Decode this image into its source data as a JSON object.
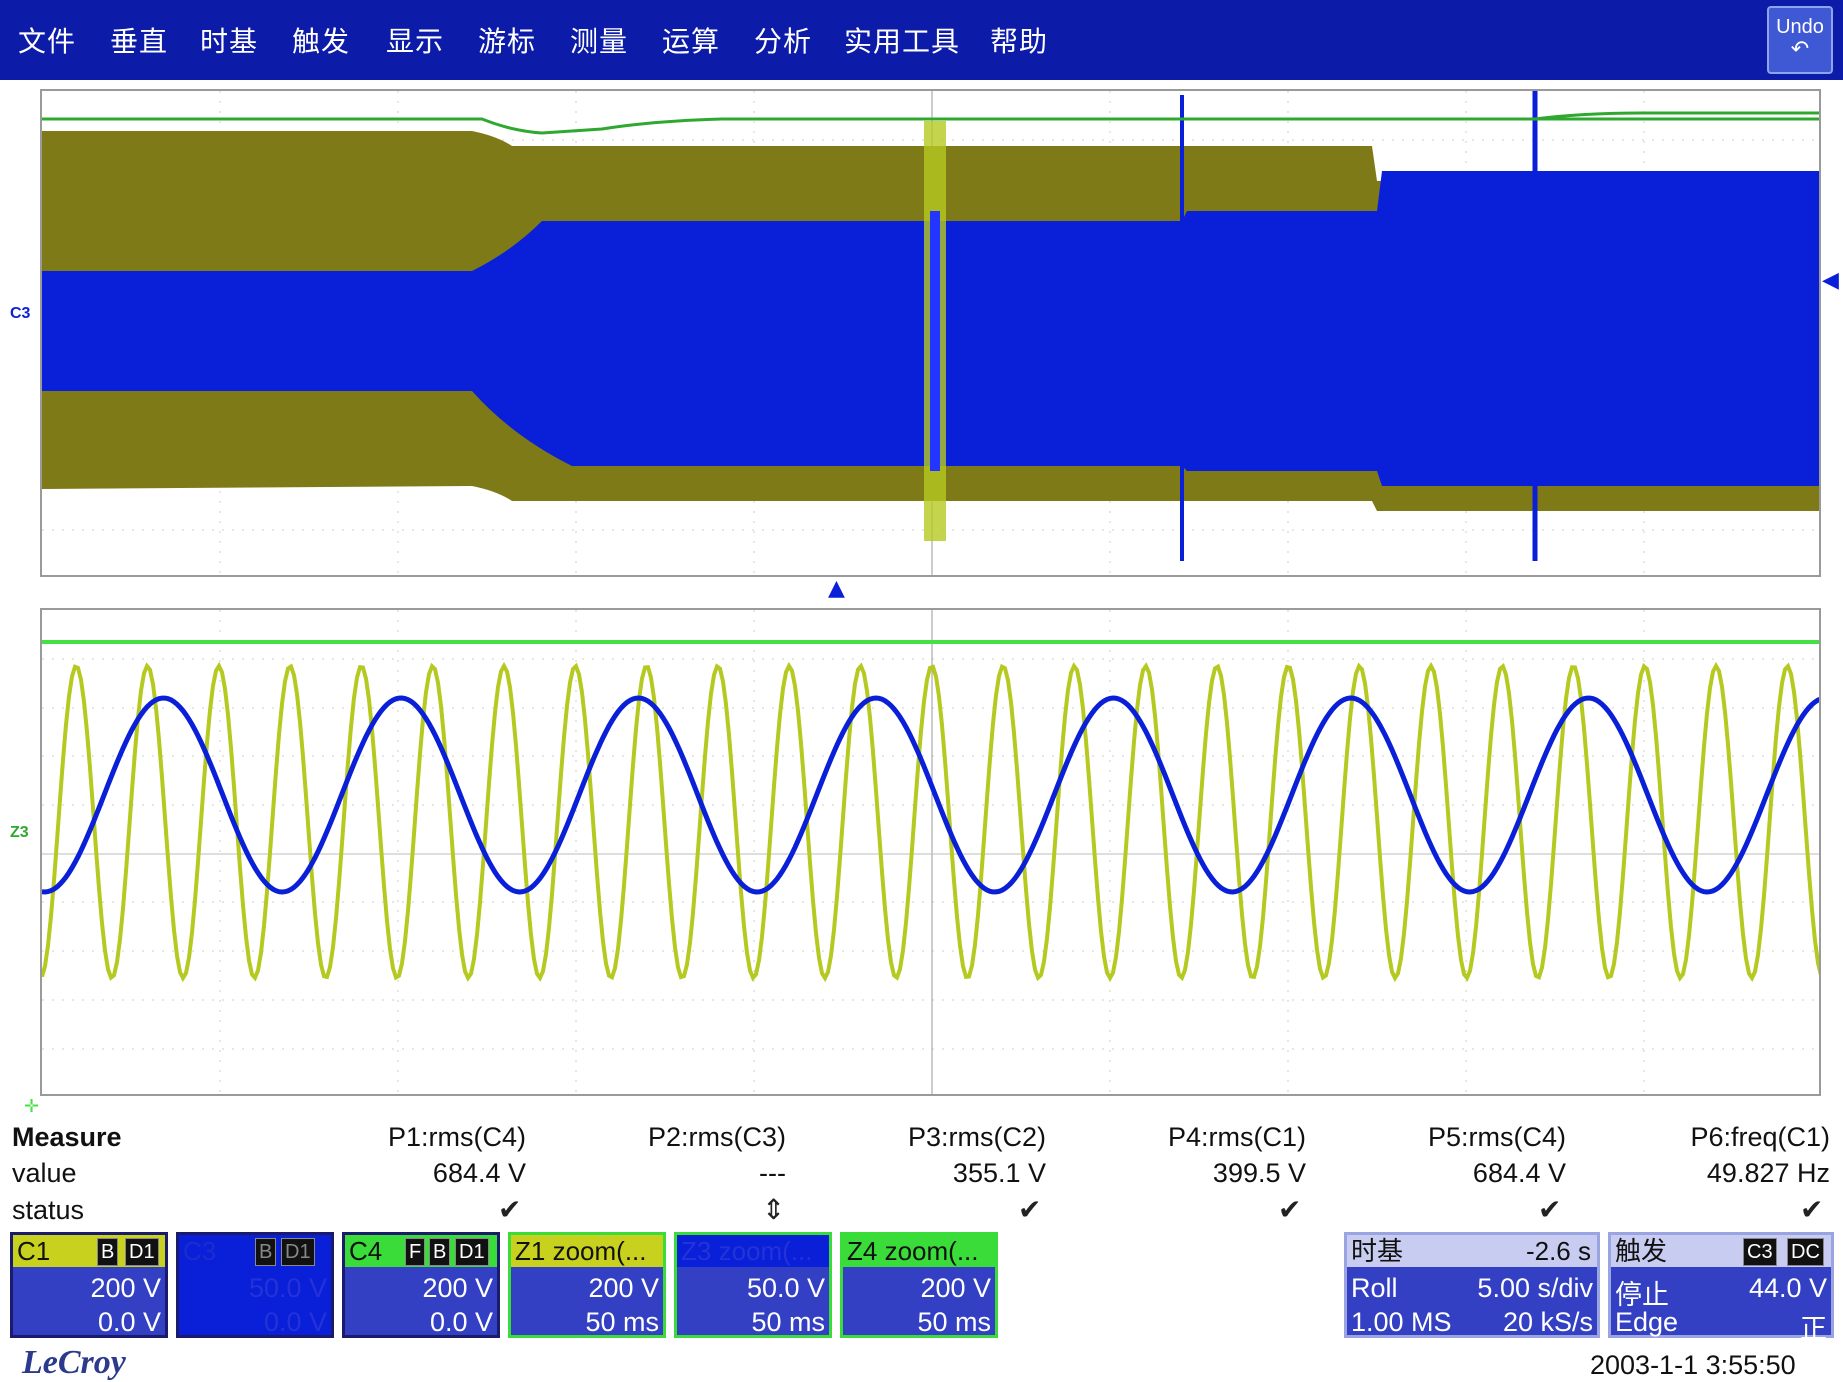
{
  "menu": {
    "items": [
      "文件",
      "垂直",
      "时基",
      "触发",
      "显示",
      "游标",
      "测量",
      "运算",
      "分析",
      "实用工具",
      "帮助"
    ],
    "undo_label": "Undo",
    "undo_icon": "undo-arrow-icon"
  },
  "channel_markers": {
    "top": "C3",
    "bottom": "Z3"
  },
  "measure": {
    "title": "Measure",
    "row_value": "value",
    "row_status": "status",
    "params": [
      {
        "name": "P1:rms(C4)",
        "value": "684.4 V",
        "status": "check"
      },
      {
        "name": "P2:rms(C3)",
        "value": "---",
        "status": "warning"
      },
      {
        "name": "P3:rms(C2)",
        "value": "355.1 V",
        "status": "check"
      },
      {
        "name": "P4:rms(C1)",
        "value": "399.5 V",
        "status": "check"
      },
      {
        "name": "P5:rms(C4)",
        "value": "684.4 V",
        "status": "check"
      },
      {
        "name": "P6:freq(C1)",
        "value": "49.827 Hz",
        "status": "check"
      }
    ]
  },
  "channels": [
    {
      "name": "C1",
      "badges": [
        "B",
        "D1"
      ],
      "v1": "200 V",
      "v2": "0.0 V",
      "color": "#c8d21e"
    },
    {
      "name": "C3",
      "badges": [
        "B",
        "D1"
      ],
      "v1": "50.0 V",
      "v2": "0.0 V",
      "color": "#0a1fd8"
    },
    {
      "name": "C4",
      "badges": [
        "F",
        "B",
        "D1"
      ],
      "v1": "200 V",
      "v2": "0.0 V",
      "color": "#3adc3a"
    },
    {
      "name": "Z1",
      "suffix": "zoom(...",
      "v1": "200 V",
      "v2": "50 ms",
      "color": "#c8d21e"
    },
    {
      "name": "Z3",
      "suffix": "zoom(...",
      "v1": "50.0 V",
      "v2": "50 ms",
      "color": "#0a1fd8"
    },
    {
      "name": "Z4",
      "suffix": "zoom(...",
      "v1": "200 V",
      "v2": "50 ms",
      "color": "#3adc3a"
    }
  ],
  "timebase": {
    "title": "时基",
    "delay": "-2.6 s",
    "mode": "Roll",
    "scale": "5.00 s/div",
    "memory": "1.00 MS",
    "rate": "20 kS/s"
  },
  "trigger": {
    "title": "触发",
    "source": "C3",
    "coupling": "DC",
    "state": "停止",
    "level": "44.0 V",
    "type": "Edge",
    "slope": "正"
  },
  "footer": {
    "brand": "LeCroy",
    "datetime": "2003-1-1 3:55:50"
  },
  "colors": {
    "menu_bg": "#0d1ca8",
    "trace_olive": "#7f7a18",
    "trace_blue": "#0a1fd8",
    "trace_green": "#2fa82f",
    "trace_yellowgreen": "#b5c920",
    "bright_green": "#44e044"
  }
}
